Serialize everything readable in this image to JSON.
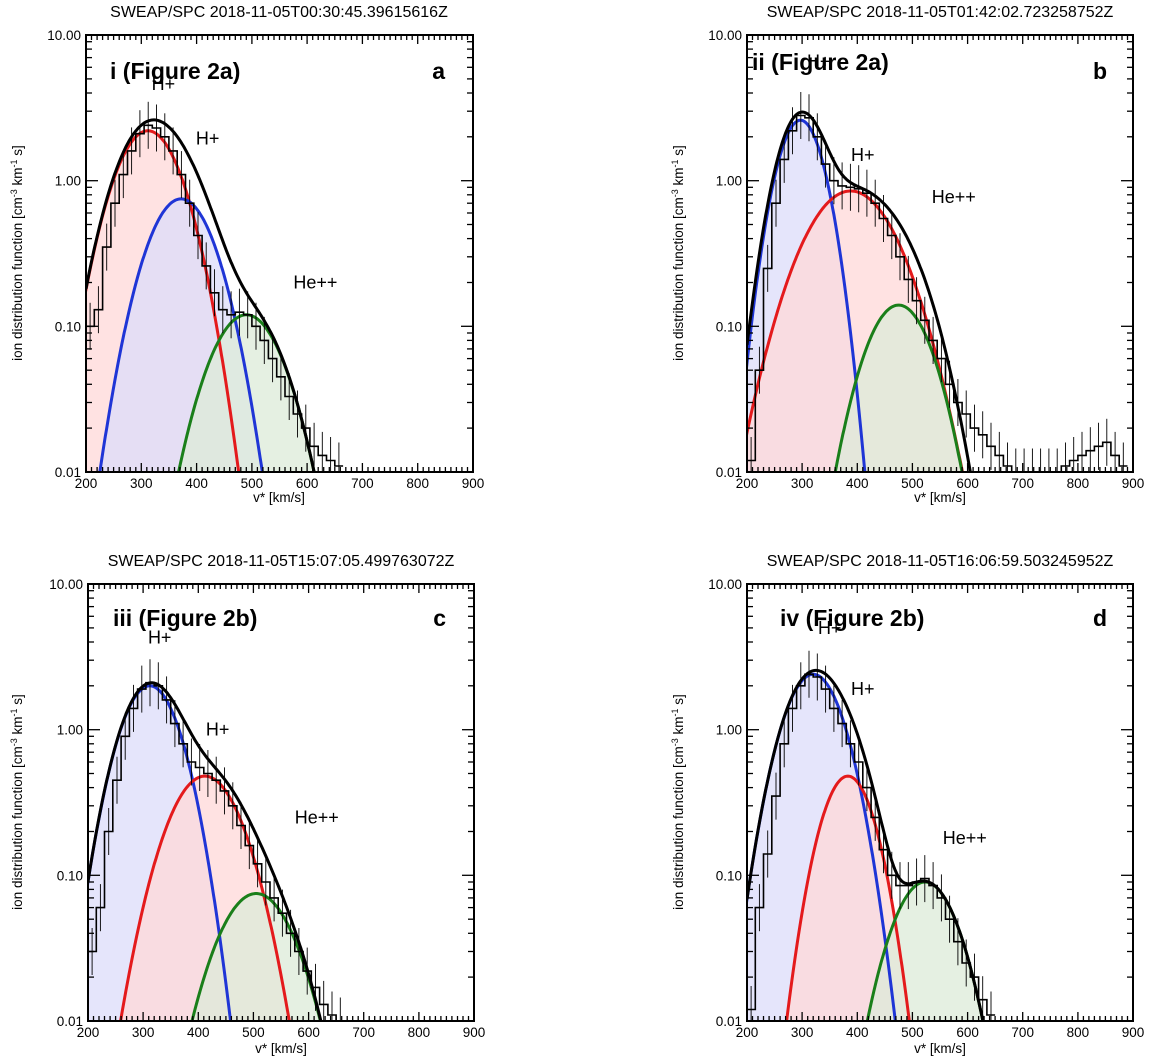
{
  "chart_data": [
    {
      "type": "line",
      "title": "SWEAP/SPC 2018-11-05T00:30:45.39615616Z",
      "panel_label": "i (Figure 2a)",
      "letter": "a",
      "xlabel": "v* [km/s]",
      "ylabel": "ion distribution function [cm-3 km-1 s]",
      "ylabel_parts": [
        "ion distribution function [cm",
        "-3",
        " km",
        "-1",
        " s]"
      ],
      "xlim": [
        200,
        900
      ],
      "ylim": [
        0.01,
        10.0
      ],
      "yscale": "log",
      "x_ticks": [
        "200",
        "300",
        "400",
        "500",
        "600",
        "700",
        "800",
        "900"
      ],
      "y_ticks": [
        "0.01",
        "0.10",
        "1.00",
        "10.00"
      ],
      "annotations": [
        {
          "text": "H+",
          "x": 340,
          "y": 4.6
        },
        {
          "text": "H+",
          "x": 420,
          "y": 1.95
        },
        {
          "text": "He++",
          "x": 615,
          "y": 0.2
        }
      ],
      "components": [
        {
          "color": "#e41a1c",
          "fill": "#ffd8d8",
          "peak": 2.2,
          "center": 312,
          "width": 50
        },
        {
          "color": "#1f35d6",
          "fill": "#dcdcfa",
          "peak": 0.75,
          "center": 372,
          "width": 50
        },
        {
          "color": "#1a7f1a",
          "fill": "#dcebd8",
          "peak": 0.12,
          "center": 490,
          "width": 55
        }
      ],
      "total_fit": {
        "color": "#000000"
      },
      "histogram": {
        "x": [
          200,
          215,
          230,
          245,
          260,
          275,
          290,
          305,
          320,
          335,
          350,
          365,
          380,
          395,
          410,
          425,
          440,
          455,
          470,
          485,
          500,
          515,
          530,
          545,
          560,
          575,
          590,
          605,
          620,
          635,
          650
        ],
        "y": [
          0.1,
          0.13,
          0.35,
          0.7,
          1.1,
          1.6,
          2.1,
          2.4,
          2.3,
          2.0,
          1.6,
          1.1,
          0.7,
          0.42,
          0.26,
          0.17,
          0.13,
          0.12,
          0.125,
          0.12,
          0.1,
          0.08,
          0.06,
          0.045,
          0.033,
          0.025,
          0.02,
          0.015,
          0.013,
          0.012,
          0.011
        ]
      }
    },
    {
      "type": "line",
      "title": "SWEAP/SPC 2018-11-05T01:42:02.723258752Z",
      "panel_label": "ii (Figure 2a)",
      "letter": "b",
      "xlabel": "v* [km/s]",
      "ylabel": "ion distribution function [cm-3 km-1 s]",
      "ylabel_parts": [
        "ion distribution function [cm",
        "-3",
        " km",
        "-1",
        " s]"
      ],
      "xlim": [
        200,
        900
      ],
      "ylim": [
        0.01,
        10.0
      ],
      "yscale": "log",
      "x_ticks": [
        "200",
        "300",
        "400",
        "500",
        "600",
        "700",
        "800",
        "900"
      ],
      "y_ticks": [
        "0.01",
        "0.10",
        "1.00",
        "10.00"
      ],
      "annotations": [
        {
          "text": "H+",
          "x": 330,
          "y": 6.6
        },
        {
          "text": "H+",
          "x": 410,
          "y": 1.5
        },
        {
          "text": "He++",
          "x": 575,
          "y": 0.77
        }
      ],
      "components": [
        {
          "color": "#1f35d6",
          "fill": "#dcdcfa",
          "peak": 2.6,
          "center": 297,
          "width": 35
        },
        {
          "color": "#e41a1c",
          "fill": "#ffd8d8",
          "peak": 0.85,
          "center": 388,
          "width": 68
        },
        {
          "color": "#1a7f1a",
          "fill": "#dcebd8",
          "peak": 0.14,
          "center": 475,
          "width": 50
        }
      ],
      "total_fit": {
        "color": "#000000"
      },
      "histogram": {
        "x": [
          200,
          215,
          230,
          245,
          260,
          275,
          290,
          305,
          320,
          335,
          350,
          365,
          380,
          395,
          410,
          425,
          440,
          455,
          470,
          485,
          500,
          515,
          530,
          545,
          560,
          575,
          590,
          605,
          620,
          635,
          650,
          665,
          680,
          695,
          710,
          725,
          740,
          755,
          770,
          785,
          800,
          815,
          830,
          845,
          860,
          875
        ],
        "y": [
          0.012,
          0.05,
          0.25,
          0.7,
          1.4,
          2.2,
          2.8,
          2.7,
          2.0,
          1.3,
          1.0,
          0.92,
          0.9,
          0.88,
          0.82,
          0.7,
          0.55,
          0.42,
          0.3,
          0.21,
          0.15,
          0.11,
          0.08,
          0.06,
          0.04,
          0.03,
          0.025,
          0.02,
          0.018,
          0.015,
          0.013,
          0.011,
          0.01,
          0.01,
          0.01,
          0.01,
          0.01,
          0.01,
          0.011,
          0.012,
          0.013,
          0.014,
          0.015,
          0.016,
          0.013,
          0.011
        ]
      }
    },
    {
      "type": "line",
      "title": "SWEAP/SPC 2018-11-05T15:07:05.499763072Z",
      "panel_label": "iii (Figure 2b)",
      "letter": "c",
      "xlabel": "v* [km/s]",
      "ylabel": "ion distribution function [cm-3 km-1 s]",
      "ylabel_parts": [
        "ion distribution function [cm",
        "-3",
        " km",
        "-1",
        " s]"
      ],
      "xlim": [
        200,
        900
      ],
      "ylim": [
        0.01,
        10.0
      ],
      "yscale": "log",
      "x_ticks": [
        "200",
        "300",
        "400",
        "500",
        "600",
        "700",
        "800",
        "900"
      ],
      "y_ticks": [
        "0.01",
        "0.10",
        "1.00",
        "10.00"
      ],
      "annotations": [
        {
          "text": "H+",
          "x": 330,
          "y": 4.3
        },
        {
          "text": "H+",
          "x": 435,
          "y": 1.0
        },
        {
          "text": "He++",
          "x": 615,
          "y": 0.25
        }
      ],
      "components": [
        {
          "color": "#1f35d6",
          "fill": "#dcdcfa",
          "peak": 2.0,
          "center": 312,
          "width": 45
        },
        {
          "color": "#e41a1c",
          "fill": "#ffd8d8",
          "peak": 0.48,
          "center": 412,
          "width": 55
        },
        {
          "color": "#1a7f1a",
          "fill": "#dcebd8",
          "peak": 0.075,
          "center": 505,
          "width": 58
        }
      ],
      "total_fit": {
        "color": "#000000"
      },
      "histogram": {
        "x": [
          200,
          215,
          230,
          245,
          260,
          275,
          290,
          305,
          320,
          335,
          350,
          365,
          380,
          395,
          410,
          425,
          440,
          455,
          470,
          485,
          500,
          515,
          530,
          545,
          560,
          575,
          590,
          605,
          620,
          635,
          650
        ],
        "y": [
          0.03,
          0.06,
          0.2,
          0.45,
          0.9,
          1.4,
          1.9,
          2.1,
          2.0,
          1.6,
          1.1,
          0.8,
          0.6,
          0.55,
          0.5,
          0.45,
          0.38,
          0.3,
          0.22,
          0.16,
          0.12,
          0.09,
          0.07,
          0.055,
          0.04,
          0.03,
          0.022,
          0.017,
          0.013,
          0.011,
          0.01
        ]
      }
    },
    {
      "type": "line",
      "title": "SWEAP/SPC 2018-11-05T16:06:59.503245952Z",
      "panel_label": "iv (Figure 2b)",
      "letter": "d",
      "xlabel": "v* [km/s]",
      "ylabel": "ion distribution function [cm-3 km-1 s]",
      "ylabel_parts": [
        "ion distribution function [cm",
        "-3",
        " km",
        "-1",
        " s]"
      ],
      "xlim": [
        200,
        900
      ],
      "ylim": [
        0.01,
        10.0
      ],
      "yscale": "log",
      "x_ticks": [
        "200",
        "300",
        "400",
        "500",
        "600",
        "700",
        "800",
        "900"
      ],
      "y_ticks": [
        "0.01",
        "0.10",
        "1.00",
        "10.00"
      ],
      "annotations": [
        {
          "text": "H+",
          "x": 350,
          "y": 5.0
        },
        {
          "text": "H+",
          "x": 410,
          "y": 1.9
        },
        {
          "text": "He++",
          "x": 595,
          "y": 0.18
        }
      ],
      "components": [
        {
          "color": "#1f35d6",
          "fill": "#dcdcfa",
          "peak": 2.4,
          "center": 320,
          "width": 45
        },
        {
          "color": "#e41a1c",
          "fill": "#ffd8d8",
          "peak": 0.48,
          "center": 383,
          "width": 40
        },
        {
          "color": "#1a7f1a",
          "fill": "#dcebd8",
          "peak": 0.09,
          "center": 523,
          "width": 50
        }
      ],
      "total_fit": {
        "color": "#000000"
      },
      "histogram": {
        "x": [
          200,
          215,
          230,
          245,
          260,
          275,
          290,
          305,
          320,
          335,
          350,
          365,
          380,
          395,
          410,
          425,
          440,
          455,
          470,
          485,
          500,
          515,
          530,
          545,
          560,
          575,
          590,
          605,
          620,
          635
        ],
        "y": [
          0.012,
          0.06,
          0.14,
          0.35,
          0.8,
          1.4,
          2.0,
          2.4,
          2.3,
          1.9,
          1.4,
          1.1,
          0.8,
          0.6,
          0.4,
          0.25,
          0.15,
          0.1,
          0.085,
          0.085,
          0.09,
          0.095,
          0.085,
          0.07,
          0.05,
          0.035,
          0.025,
          0.02,
          0.014,
          0.011
        ]
      }
    }
  ]
}
